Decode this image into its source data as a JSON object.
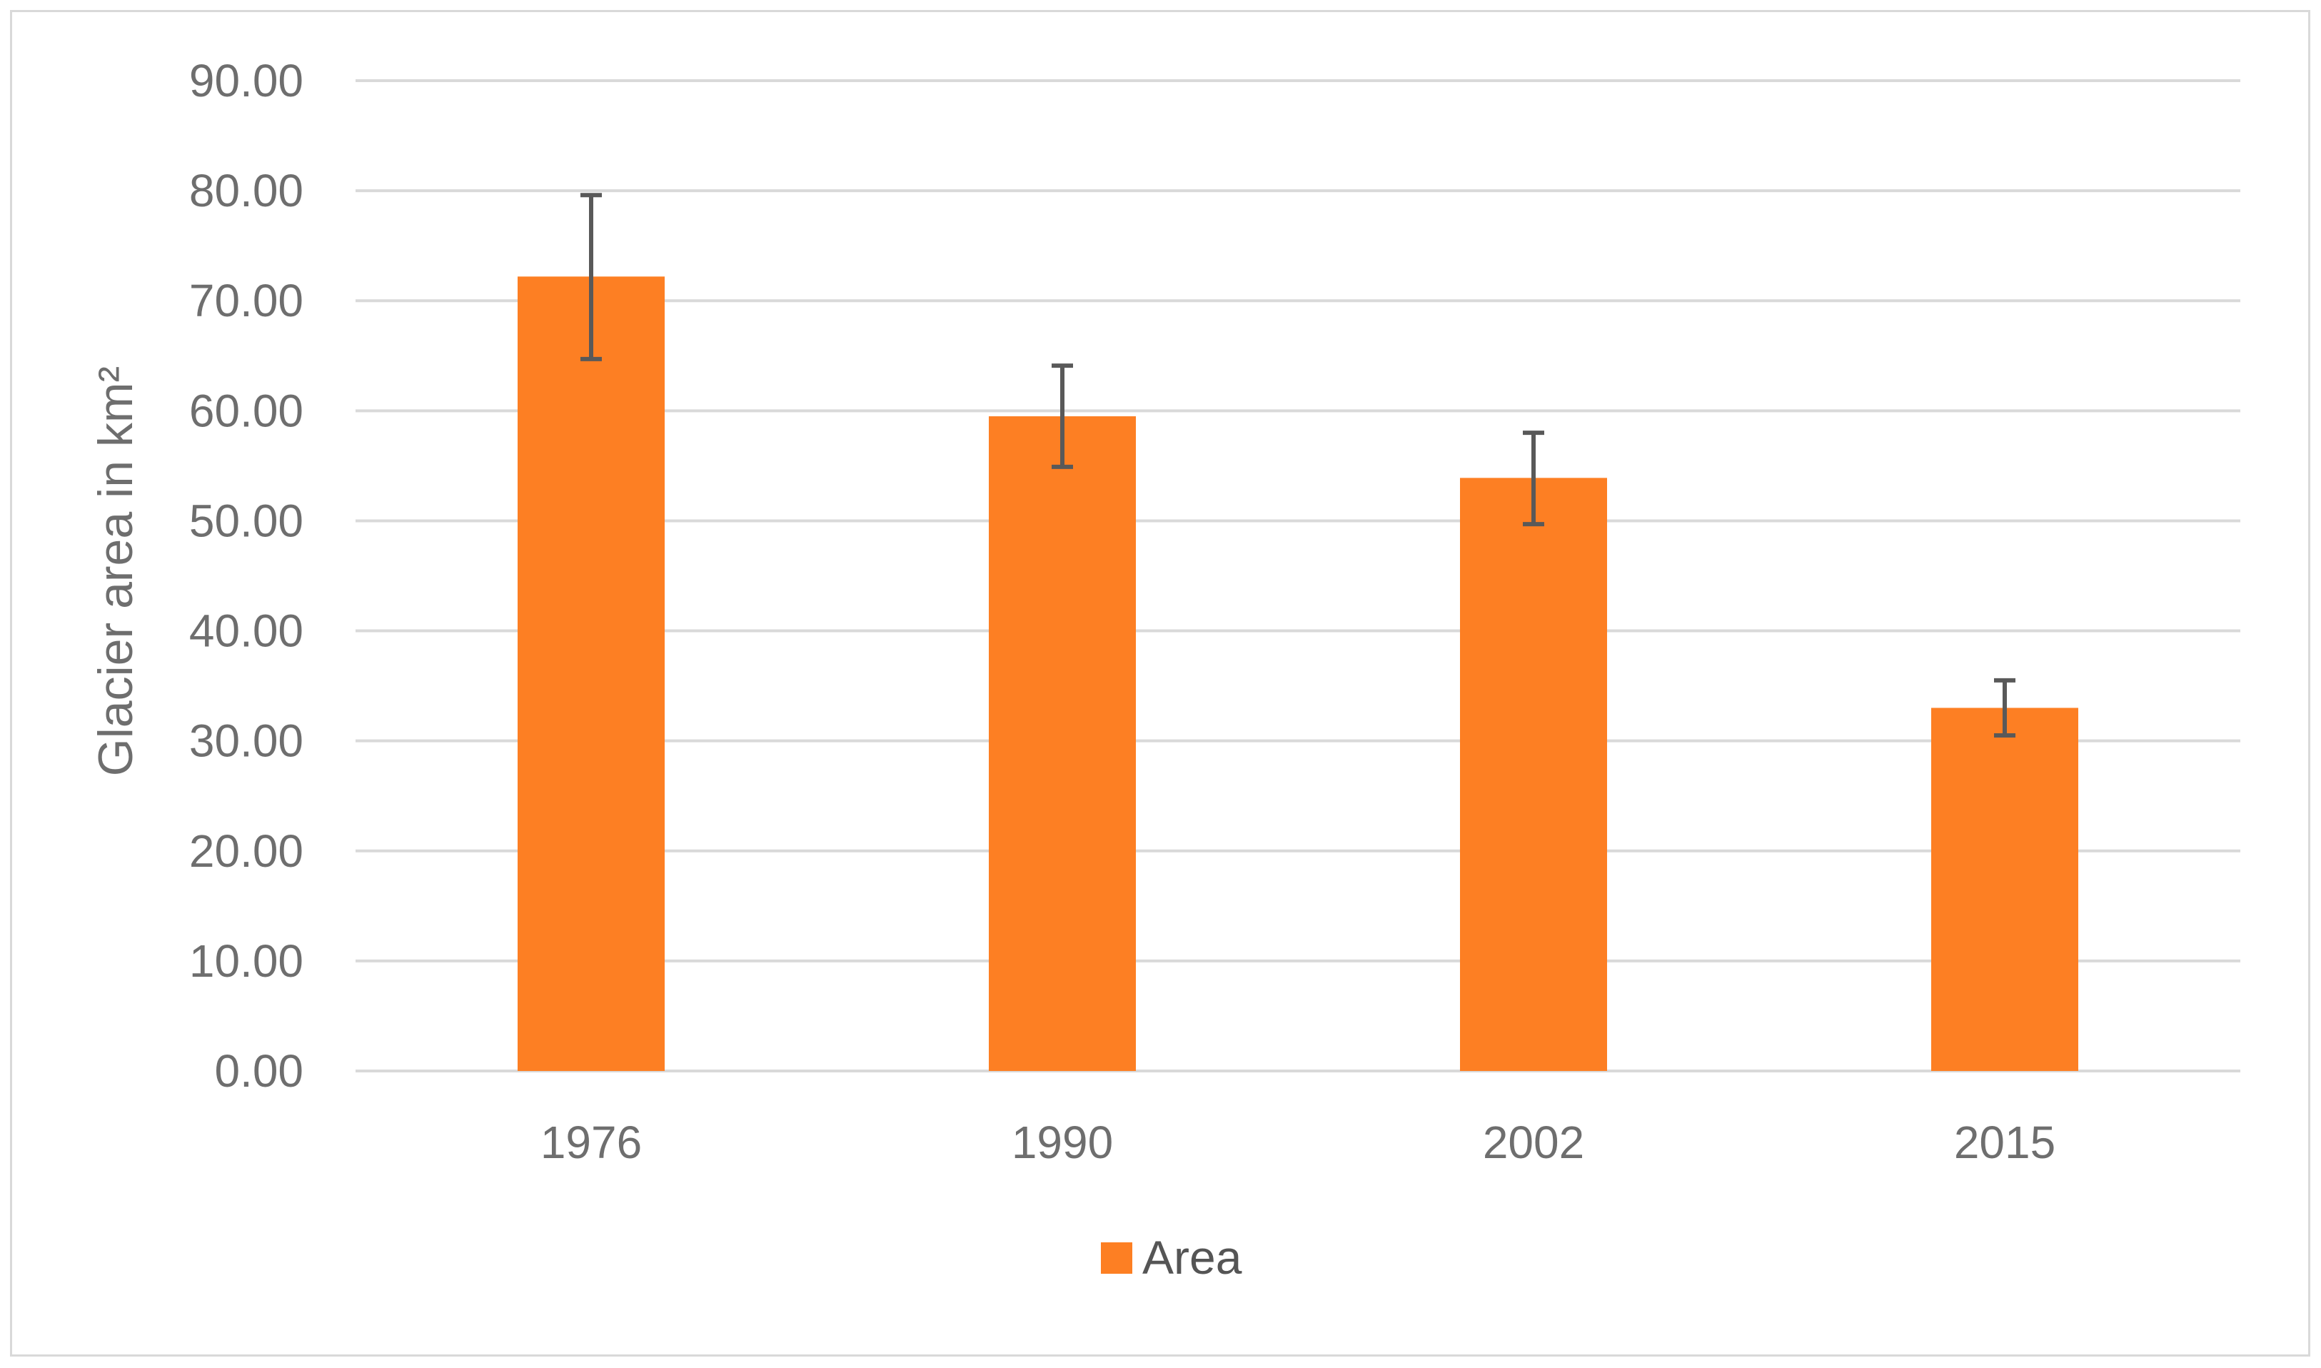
{
  "chart_data": {
    "type": "bar",
    "title": "",
    "xlabel": "",
    "ylabel": "Glacier area in km²",
    "categories": [
      "1976",
      "1990",
      "2002",
      "2015"
    ],
    "series": [
      {
        "name": "Area",
        "color": "#fd7f23",
        "values": [
          72.2,
          59.5,
          53.9,
          33.0
        ],
        "error_low": [
          64.7,
          54.9,
          49.7,
          30.5
        ],
        "error_high": [
          79.6,
          64.1,
          58.0,
          35.5
        ]
      }
    ],
    "ylim": [
      0,
      90
    ],
    "yticks": [
      "0.00",
      "10.00",
      "20.00",
      "30.00",
      "40.00",
      "50.00",
      "60.00",
      "70.00",
      "80.00",
      "90.00"
    ],
    "grid": true,
    "legend_position": "bottom",
    "colors": {
      "grid": "#d9d9d9",
      "error_bar": "#595959",
      "text": "#6e6e6e"
    }
  }
}
